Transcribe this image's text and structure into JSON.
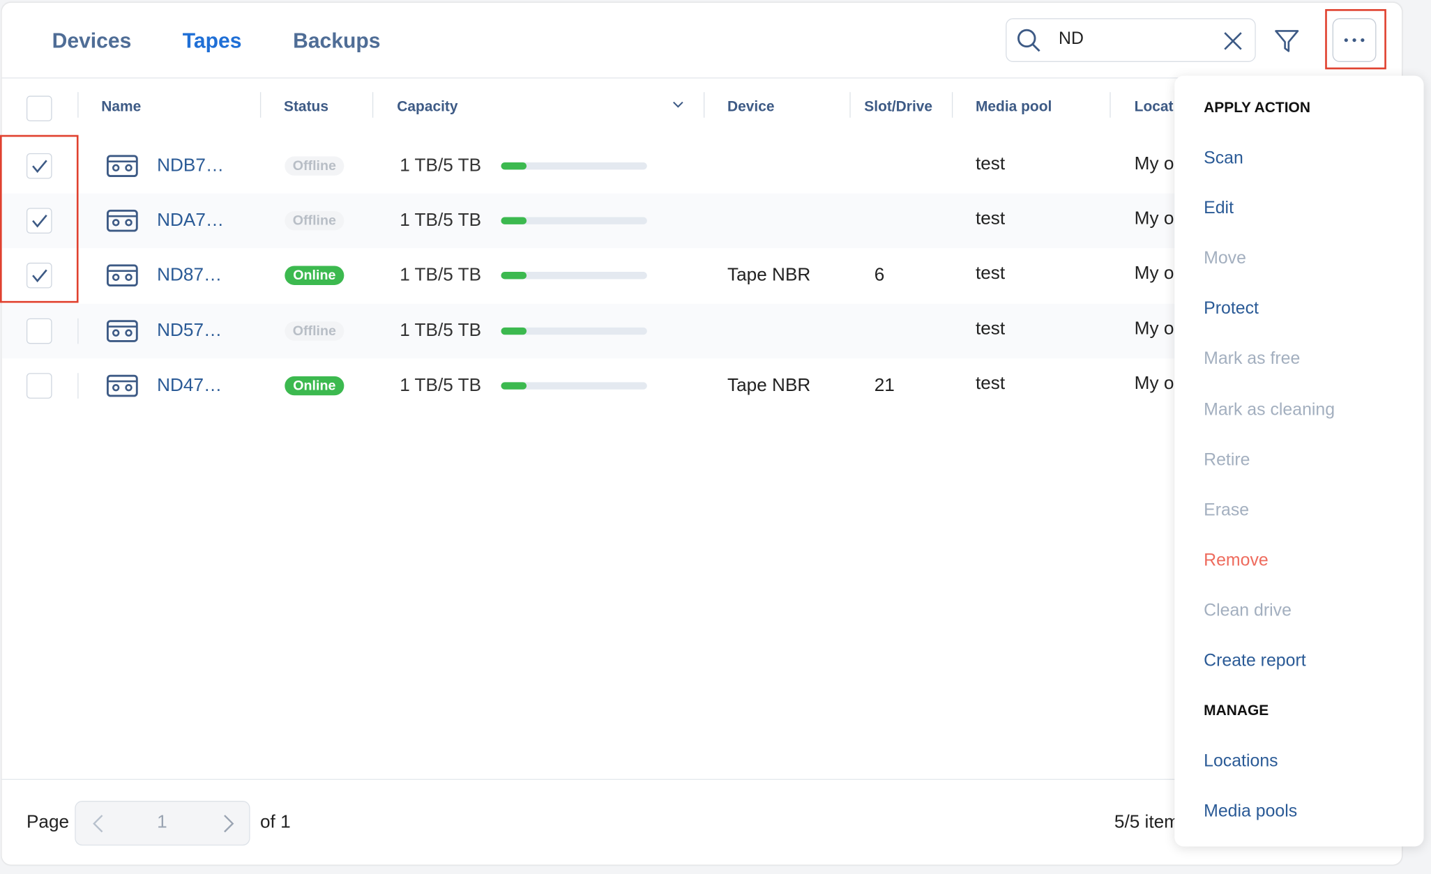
{
  "tabs": [
    {
      "label": "Devices",
      "active": false
    },
    {
      "label": "Tapes",
      "active": true
    },
    {
      "label": "Backups",
      "active": false
    }
  ],
  "search": {
    "value": "ND"
  },
  "table": {
    "columns": [
      "Name",
      "Status",
      "Capacity",
      "Device",
      "Slot/Drive",
      "Media pool",
      "Locat"
    ],
    "rows": [
      {
        "checked": true,
        "name": "NDB7…",
        "status": "Offline",
        "online": false,
        "capacity": "1 TB/5 TB",
        "pool": "test",
        "location": "My o"
      },
      {
        "checked": true,
        "name": "NDA7…",
        "status": "Offline",
        "online": false,
        "capacity": "1 TB/5 TB",
        "pool": "test",
        "location": "My o"
      },
      {
        "checked": true,
        "name": "ND87…",
        "status": "Online",
        "online": true,
        "capacity": "1 TB/5 TB",
        "device": "Tape NBR",
        "slot": 6,
        "pool": "test",
        "location": "My o"
      },
      {
        "checked": false,
        "name": "ND57…",
        "status": "Offline",
        "online": false,
        "capacity": "1 TB/5 TB",
        "pool": "test",
        "location": "My o"
      },
      {
        "checked": false,
        "name": "ND47…",
        "status": "Online",
        "online": true,
        "capacity": "1 TB/5 TB",
        "device": "Tape NBR",
        "slot": 21,
        "pool": "test",
        "location": "My o"
      }
    ]
  },
  "pagination": {
    "label": "Page",
    "page": 1,
    "of": "of 1",
    "items": "5/5 item"
  },
  "menu": {
    "sections": [
      {
        "title": "APPLY ACTION",
        "items": [
          {
            "label": "Scan",
            "state": "enabled"
          },
          {
            "label": "Edit",
            "state": "enabled"
          },
          {
            "label": "Move",
            "state": "disabled"
          },
          {
            "label": "Protect",
            "state": "enabled"
          },
          {
            "label": "Mark as free",
            "state": "disabled"
          },
          {
            "label": "Mark as cleaning",
            "state": "disabled"
          },
          {
            "label": "Retire",
            "state": "disabled"
          },
          {
            "label": "Erase",
            "state": "disabled"
          },
          {
            "label": "Remove",
            "state": "danger"
          },
          {
            "label": "Clean drive",
            "state": "disabled"
          },
          {
            "label": "Create report",
            "state": "enabled"
          }
        ]
      },
      {
        "title": "MANAGE",
        "items": [
          {
            "label": "Locations",
            "state": "enabled"
          },
          {
            "label": "Media pools",
            "state": "enabled"
          }
        ]
      }
    ]
  }
}
